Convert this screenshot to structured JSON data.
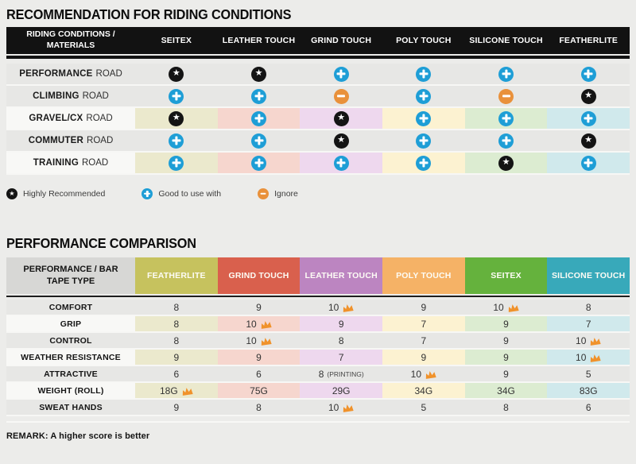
{
  "colors": {
    "star_bg": "#141414",
    "plus_bg": "#1e9ed6",
    "minus_bg": "#e9913b",
    "crown": "#f0922b",
    "table1_header_bg": "#121212",
    "page_bg": "#ececea"
  },
  "recommendation": {
    "title": "RECOMMENDATION FOR RIDING CONDITIONS",
    "corner_header": "RIDING CONDITIONS / MATERIALS",
    "columns": [
      "SEITEX",
      "LEATHER TOUCH",
      "GRIND TOUCH",
      "POLY TOUCH",
      "SILICONE TOUCH",
      "FEATHERLITE"
    ],
    "tints": [
      "#ebe9cd",
      "#f6d6ce",
      "#eed8ee",
      "#fcf2d1",
      "#dcecd1",
      "#d0e9ec"
    ],
    "rows": [
      {
        "bold": "PERFORMANCE",
        "light": "ROAD",
        "tinted": false,
        "cells": [
          "star",
          "star",
          "plus",
          "plus",
          "plus",
          "plus"
        ]
      },
      {
        "bold": "CLIMBING",
        "light": "ROAD",
        "tinted": false,
        "cells": [
          "plus",
          "plus",
          "minus",
          "plus",
          "minus",
          "star"
        ]
      },
      {
        "bold": "GRAVEL/CX",
        "light": "ROAD",
        "tinted": true,
        "cells": [
          "star",
          "plus",
          "star",
          "plus",
          "plus",
          "plus"
        ]
      },
      {
        "bold": "COMMUTER",
        "light": "ROAD",
        "tinted": false,
        "cells": [
          "plus",
          "plus",
          "star",
          "plus",
          "plus",
          "star"
        ]
      },
      {
        "bold": "TRAINING",
        "light": "ROAD",
        "tinted": true,
        "cells": [
          "plus",
          "plus",
          "plus",
          "plus",
          "star",
          "plus"
        ]
      }
    ],
    "legend": [
      {
        "icon": "star",
        "label": "Highly Recommended"
      },
      {
        "icon": "plus",
        "label": "Good to use with"
      },
      {
        "icon": "minus",
        "label": "Ignore"
      }
    ]
  },
  "performance": {
    "title": "PERFORMANCE COMPARISON",
    "corner_header": "PERFORMANCE / BAR TAPE TYPE",
    "columns": [
      {
        "label": "FEATHERLITE",
        "color": "#c6c25e",
        "tint": "#ebe9cd"
      },
      {
        "label": "GRIND TOUCH",
        "color": "#d9604d",
        "tint": "#f6d6ce"
      },
      {
        "label": "LEATHER TOUCH",
        "color": "#bc85c1",
        "tint": "#eed8ee"
      },
      {
        "label": "POLY TOUCH",
        "color": "#f5b266",
        "tint": "#fcf2d1"
      },
      {
        "label": "SEITEX",
        "color": "#65b23d",
        "tint": "#dcecd1"
      },
      {
        "label": "SILICONE TOUCH",
        "color": "#38a9ba",
        "tint": "#d0e9ec"
      }
    ],
    "rows": [
      {
        "label": "COMFORT",
        "tinted": false,
        "cells": [
          {
            "v": "8"
          },
          {
            "v": "9"
          },
          {
            "v": "10",
            "crown": true
          },
          {
            "v": "9"
          },
          {
            "v": "10",
            "crown": true
          },
          {
            "v": "8"
          }
        ]
      },
      {
        "label": "GRIP",
        "tinted": true,
        "cells": [
          {
            "v": "8"
          },
          {
            "v": "10",
            "crown": true
          },
          {
            "v": "9"
          },
          {
            "v": "7"
          },
          {
            "v": "9"
          },
          {
            "v": "7"
          }
        ]
      },
      {
        "label": "CONTROL",
        "tinted": false,
        "cells": [
          {
            "v": "8"
          },
          {
            "v": "10",
            "crown": true
          },
          {
            "v": "8"
          },
          {
            "v": "7"
          },
          {
            "v": "9"
          },
          {
            "v": "10",
            "crown": true
          }
        ]
      },
      {
        "label": "WEATHER RESISTANCE",
        "tinted": true,
        "cells": [
          {
            "v": "9"
          },
          {
            "v": "9"
          },
          {
            "v": "7"
          },
          {
            "v": "9"
          },
          {
            "v": "9"
          },
          {
            "v": "10",
            "crown": true
          }
        ]
      },
      {
        "label": "ATTRACTIVE",
        "tinted": false,
        "cells": [
          {
            "v": "6"
          },
          {
            "v": "6"
          },
          {
            "v": "8",
            "suffix": "(PRINTING)"
          },
          {
            "v": "10",
            "crown": true
          },
          {
            "v": "9"
          },
          {
            "v": "5"
          }
        ]
      },
      {
        "label": "WEIGHT (ROLL)",
        "tinted": true,
        "cells": [
          {
            "v": "18G",
            "crown": true
          },
          {
            "v": "75G"
          },
          {
            "v": "29G"
          },
          {
            "v": "34G"
          },
          {
            "v": "34G"
          },
          {
            "v": "83G"
          }
        ]
      },
      {
        "label": "SWEAT HANDS",
        "tinted": false,
        "cells": [
          {
            "v": "9"
          },
          {
            "v": "8"
          },
          {
            "v": "10",
            "crown": true
          },
          {
            "v": "5"
          },
          {
            "v": "8"
          },
          {
            "v": "6"
          }
        ]
      }
    ],
    "remark": "REMARK: A higher score is better"
  }
}
